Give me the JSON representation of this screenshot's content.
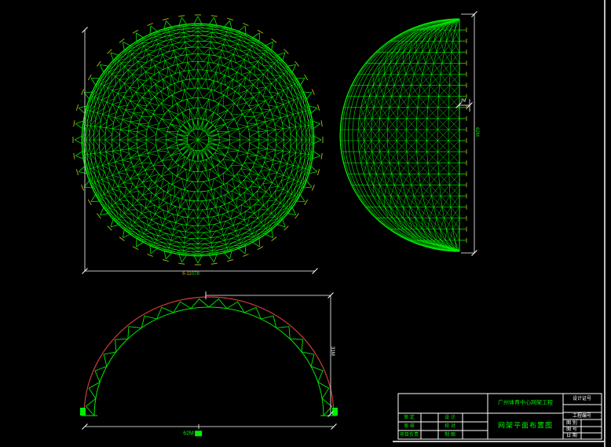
{
  "app": {
    "kind": "cad-model-space",
    "background": "#000000"
  },
  "colors": {
    "wire": "#00ee00",
    "red": "#cc3a3a",
    "dim": "#ffffff",
    "tick": "#a8a818",
    "border_soft": "#c8c8c8"
  },
  "views": {
    "plan": {
      "description": "dome space-frame plan view (circular wireframe)"
    },
    "elevation": {
      "description": "dome side elevation (half-disc wireframe, flat edge right)"
    },
    "section": {
      "description": "arch truss section, red top chord with green web"
    }
  },
  "dims": {
    "plan_a": "6-11",
    "plan_b": "078",
    "arch_span": "62M",
    "arch_height": "31M",
    "elev_height": "62M",
    "elev_depth": "2M"
  },
  "title_block": {
    "project_name": "广州体育中心网架工程",
    "drawing_title": "网架平面布置图",
    "cert_label": "设计证号",
    "project_no_label": "工程编号",
    "sign_rows": [
      {
        "l1": "审 定",
        "v1": "",
        "l2": "设 计",
        "v2": ""
      },
      {
        "l1": "审 核",
        "v1": "",
        "l2": "校 对",
        "v2": ""
      },
      {
        "l1": "项目负责",
        "v1": "",
        "l2": "制 图",
        "v2": ""
      }
    ],
    "meta_rows": [
      {
        "label": "图 别",
        "value": ""
      },
      {
        "label": "图 号",
        "value": ""
      },
      {
        "label": "日 期",
        "value": ""
      }
    ]
  }
}
